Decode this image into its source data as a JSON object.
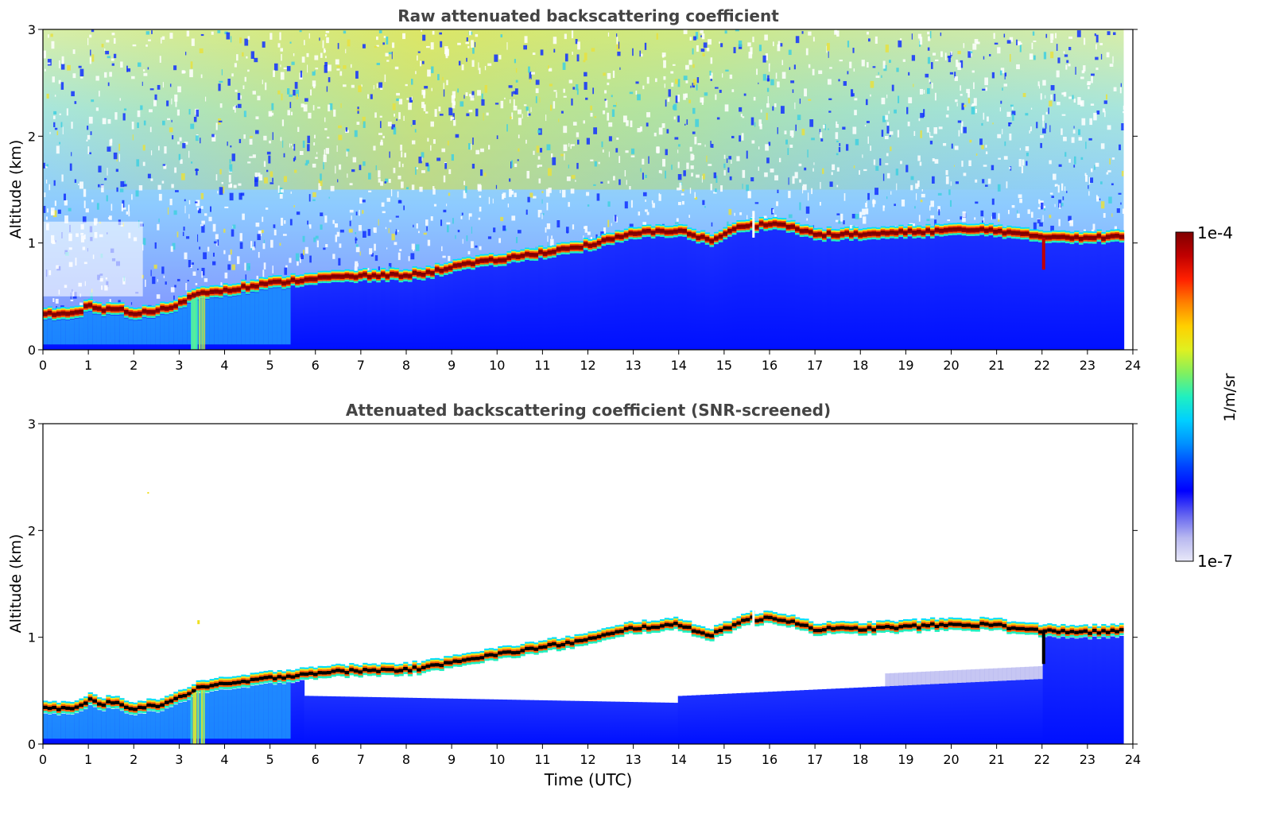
{
  "chart_data": [
    {
      "type": "heatmap",
      "title": "Raw attenuated backscattering coefficient",
      "xlabel": "",
      "ylabel": "Altitude (km)",
      "xlim": [
        0,
        24
      ],
      "ylim": [
        0,
        3
      ],
      "xticks": [
        0,
        1,
        2,
        3,
        4,
        5,
        6,
        7,
        8,
        9,
        10,
        11,
        12,
        13,
        14,
        15,
        16,
        17,
        18,
        19,
        20,
        21,
        22,
        23,
        24
      ],
      "yticks": [
        0,
        1,
        2,
        3
      ],
      "layer_top_altitude_km": {
        "time_utc": [
          0,
          0.8,
          1.0,
          1.3,
          1.5,
          2.0,
          2.5,
          3.0,
          3.4,
          4.0,
          5.0,
          6.0,
          7.0,
          8.0,
          8.5,
          9.0,
          10.0,
          11.0,
          12.0,
          12.5,
          13.0,
          14.0,
          14.3,
          14.7,
          15.0,
          15.3,
          15.6,
          15.7,
          16.0,
          16.5,
          17.0,
          18.0,
          19.0,
          20.0,
          21.0,
          21.5,
          22.0,
          22.5,
          23.0,
          23.8
        ],
        "altitude_km": [
          0.36,
          0.36,
          0.44,
          0.38,
          0.42,
          0.36,
          0.38,
          0.45,
          0.55,
          0.58,
          0.64,
          0.69,
          0.71,
          0.72,
          0.74,
          0.8,
          0.86,
          0.93,
          1.0,
          1.05,
          1.11,
          1.14,
          1.1,
          1.04,
          1.1,
          1.16,
          1.2,
          1.18,
          1.21,
          1.17,
          1.1,
          1.1,
          1.12,
          1.14,
          1.14,
          1.1,
          1.08,
          1.08,
          1.07,
          1.08
        ]
      }
    },
    {
      "type": "heatmap",
      "title": "Attenuated backscattering coefficient (SNR-screened)",
      "xlabel": "Time (UTC)",
      "ylabel": "Altitude (km)",
      "xlim": [
        0,
        24
      ],
      "ylim": [
        0,
        3
      ],
      "xticks": [
        0,
        1,
        2,
        3,
        4,
        5,
        6,
        7,
        8,
        9,
        10,
        11,
        12,
        13,
        14,
        15,
        16,
        17,
        18,
        19,
        20,
        21,
        22,
        23,
        24
      ],
      "yticks": [
        0,
        1,
        2,
        3
      ]
    }
  ],
  "colorbar": {
    "label": "1/m/sr",
    "max_label": "1e-4",
    "min_label": "1e-7",
    "colors": [
      "#e8e8f8",
      "#b8b8f0",
      "#6060f0",
      "#0000ff",
      "#0040ff",
      "#0090ff",
      "#00d0ff",
      "#20f0c0",
      "#80f060",
      "#e0f020",
      "#ffd000",
      "#ff8000",
      "#ff2000",
      "#c00000",
      "#800000"
    ]
  }
}
